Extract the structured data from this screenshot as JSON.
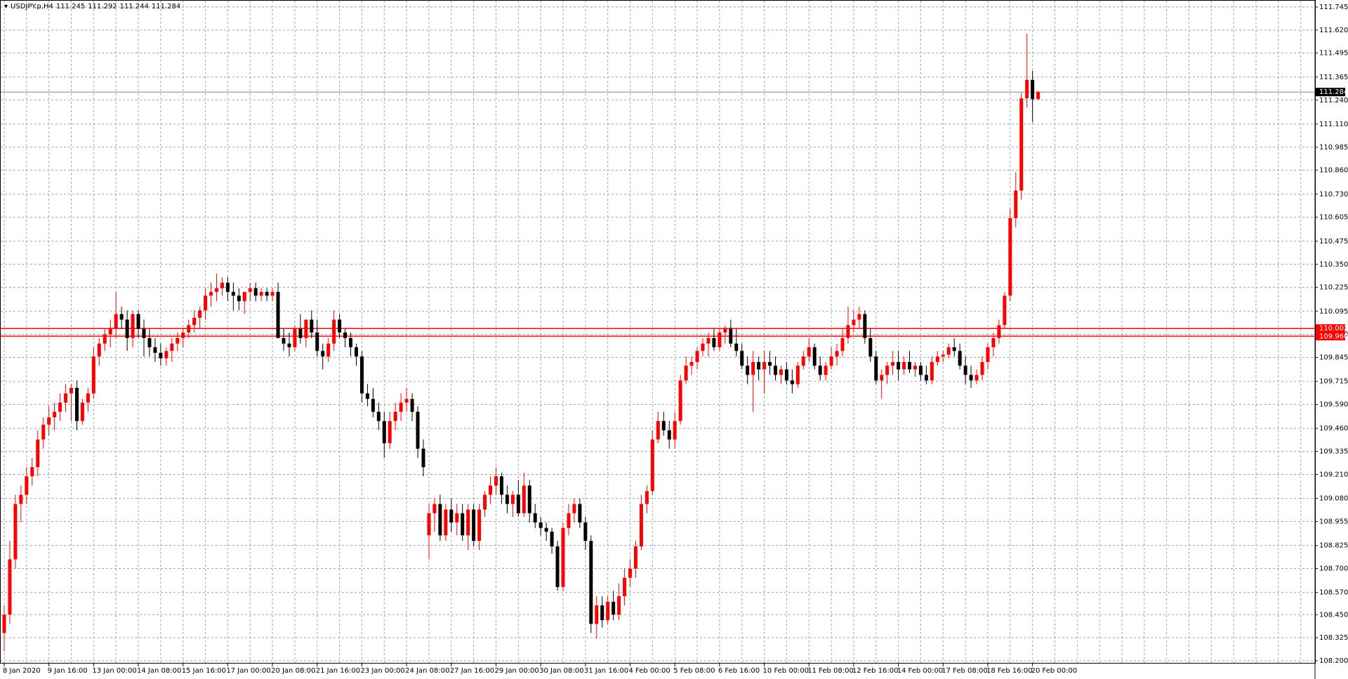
{
  "chart_data": {
    "type": "candlestick",
    "title": "USDJPY.p,H4",
    "up_color": "#ff0000",
    "down_color": "#000000",
    "grid": true,
    "ylim": [
      108.2,
      111.745
    ],
    "yticks": [
      111.745,
      {
        "value": 111.62,
        "label": "111.620"
      },
      111.495,
      111.365,
      {
        "value": 111.24,
        "label": "111.240"
      },
      {
        "value": 111.11,
        "label": "111.110"
      },
      110.985,
      {
        "value": 110.86,
        "label": "110.860"
      },
      {
        "value": 110.73,
        "label": "110.730"
      },
      110.605,
      110.475,
      {
        "value": 110.35,
        "label": "110.350"
      },
      110.225,
      110.095,
      {
        "value": 109.97,
        "label": "109.970"
      },
      109.845,
      109.715,
      {
        "value": 109.59,
        "label": "109.590"
      },
      {
        "value": 109.46,
        "label": "109.460"
      },
      109.335,
      {
        "value": 109.21,
        "label": "109.210"
      },
      {
        "value": 109.08,
        "label": "109.080"
      },
      108.955,
      108.825,
      {
        "value": 108.7,
        "label": "108.700"
      },
      {
        "value": 108.57,
        "label": "108.570"
      },
      {
        "value": 108.45,
        "label": "108.450"
      },
      108.325,
      {
        "value": 108.2,
        "label": "108.200"
      }
    ],
    "levels": [
      {
        "value": 110.002,
        "color": "#ff0000"
      },
      {
        "value": {
          "value": 109.96,
          "label": "109.960"
        },
        "color": "#ff0000"
      }
    ],
    "categories": [
      "8 Jan 2020",
      null,
      null,
      null,
      null,
      null,
      null,
      null,
      "9 Jan 16:00",
      null,
      null,
      null,
      null,
      null,
      null,
      null,
      "13 Jan 00:00",
      null,
      null,
      null,
      null,
      null,
      null,
      null,
      "14 Jan 08:00",
      null,
      null,
      null,
      null,
      null,
      null,
      null,
      "15 Jan 16:00",
      null,
      null,
      null,
      null,
      null,
      null,
      null,
      "17 Jan 00:00",
      null,
      null,
      null,
      null,
      null,
      null,
      null,
      "20 Jan 08:00",
      null,
      null,
      null,
      null,
      null,
      null,
      null,
      "21 Jan 16:00",
      null,
      null,
      null,
      null,
      null,
      null,
      null,
      "23 Jan 00:00",
      null,
      null,
      null,
      null,
      null,
      null,
      null,
      "24 Jan 08:00",
      null,
      null,
      null,
      null,
      null,
      null,
      null,
      "27 Jan 16:00",
      null,
      null,
      null,
      null,
      null,
      null,
      null,
      "29 Jan 00:00",
      null,
      null,
      null,
      null,
      null,
      null,
      null,
      "30 Jan 08:00",
      null,
      null,
      null,
      null,
      null,
      null,
      null,
      "31 Jan 16:00",
      null,
      null,
      null,
      null,
      null,
      null,
      null,
      "4 Feb 00:00",
      null,
      null,
      null,
      null,
      null,
      null,
      null,
      "5 Feb 08:00",
      null,
      null,
      null,
      null,
      null,
      null,
      null,
      "6 Feb 16:00",
      null,
      null,
      null,
      null,
      null,
      null,
      null,
      "10 Feb 00:00",
      null,
      null,
      null,
      null,
      null,
      null,
      null,
      "11 Feb 08:00",
      null,
      null,
      null,
      null,
      null,
      null,
      null,
      "12 Feb 16:00",
      null,
      null,
      null,
      null,
      null,
      null,
      null,
      "14 Feb 00:00",
      null,
      null,
      null,
      null,
      null,
      null,
      null,
      "17 Feb 08:00",
      null,
      null,
      null,
      null,
      null,
      null,
      null,
      "18 Feb 16:00",
      null,
      null,
      null,
      null,
      null,
      null,
      null,
      "20 Feb 00:00",
      null
    ],
    "ohlc": [
      [
        108.35,
        108.5,
        108.25,
        108.45
      ],
      [
        108.45,
        108.85,
        108.4,
        108.75
      ],
      [
        108.75,
        109.1,
        108.7,
        109.05
      ],
      [
        109.05,
        109.15,
        108.95,
        109.1
      ],
      [
        109.1,
        109.25,
        109.05,
        109.2
      ],
      [
        109.2,
        109.3,
        109.15,
        109.25
      ],
      [
        109.25,
        109.45,
        109.2,
        109.4
      ],
      [
        109.4,
        109.52,
        109.35,
        109.48
      ],
      [
        109.48,
        109.58,
        109.42,
        109.52
      ],
      [
        109.52,
        109.6,
        109.45,
        109.55
      ],
      [
        109.55,
        109.65,
        109.5,
        109.6
      ],
      [
        109.6,
        109.7,
        109.55,
        109.65
      ],
      [
        109.65,
        109.7,
        109.5,
        109.68
      ],
      [
        109.68,
        109.72,
        109.45,
        109.5
      ],
      [
        109.5,
        109.62,
        109.48,
        109.6
      ],
      [
        109.6,
        109.68,
        109.55,
        109.65
      ],
      [
        109.65,
        109.9,
        109.62,
        109.85
      ],
      [
        109.85,
        109.95,
        109.8,
        109.92
      ],
      [
        109.92,
        110.0,
        109.88,
        109.97
      ],
      [
        109.97,
        110.05,
        109.9,
        110.0
      ],
      [
        110.0,
        110.2,
        109.95,
        110.08
      ],
      [
        110.08,
        110.12,
        110.0,
        110.05
      ],
      [
        110.05,
        110.1,
        109.88,
        109.95
      ],
      [
        109.95,
        110.1,
        109.9,
        110.08
      ],
      [
        110.08,
        110.1,
        109.95,
        110.0
      ],
      [
        110.0,
        110.05,
        109.85,
        109.95
      ],
      [
        109.95,
        110.0,
        109.85,
        109.9
      ],
      [
        109.9,
        109.95,
        109.82,
        109.87
      ],
      [
        109.87,
        109.92,
        109.8,
        109.84
      ],
      [
        109.84,
        109.9,
        109.8,
        109.88
      ],
      [
        109.88,
        109.95,
        109.82,
        109.92
      ],
      [
        109.92,
        109.98,
        109.88,
        109.95
      ],
      [
        109.95,
        110.0,
        109.9,
        109.98
      ],
      [
        109.98,
        110.05,
        109.95,
        110.02
      ],
      [
        110.02,
        110.1,
        109.98,
        110.06
      ],
      [
        110.06,
        110.12,
        110.0,
        110.1
      ],
      [
        110.1,
        110.22,
        110.05,
        110.18
      ],
      [
        110.18,
        110.25,
        110.12,
        110.2
      ],
      [
        110.2,
        110.3,
        110.15,
        110.22
      ],
      [
        110.22,
        110.28,
        110.18,
        110.25
      ],
      [
        110.25,
        110.28,
        110.15,
        110.2
      ],
      [
        110.2,
        110.25,
        110.1,
        110.18
      ],
      [
        110.18,
        110.22,
        110.1,
        110.15
      ],
      [
        110.15,
        110.2,
        110.08,
        110.2
      ],
      [
        110.2,
        110.25,
        110.15,
        110.22
      ],
      [
        110.22,
        110.25,
        110.15,
        110.18
      ],
      [
        110.18,
        110.22,
        110.15,
        110.2
      ],
      [
        110.2,
        110.22,
        110.15,
        110.18
      ],
      [
        110.18,
        110.22,
        110.15,
        110.2
      ],
      [
        110.2,
        110.25,
        109.95,
        109.95
      ],
      [
        109.95,
        110.0,
        109.88,
        109.92
      ],
      [
        109.92,
        109.98,
        109.85,
        109.9
      ],
      [
        109.9,
        110.02,
        109.88,
        110.0
      ],
      [
        110.0,
        110.08,
        109.92,
        109.95
      ],
      [
        109.95,
        110.05,
        109.9,
        110.05
      ],
      [
        110.05,
        110.1,
        109.95,
        109.98
      ],
      [
        109.98,
        110.05,
        109.85,
        109.88
      ],
      [
        109.88,
        109.92,
        109.78,
        109.85
      ],
      [
        109.85,
        109.95,
        109.82,
        109.92
      ],
      [
        109.92,
        110.1,
        109.88,
        110.05
      ],
      [
        110.05,
        110.08,
        109.95,
        109.98
      ],
      [
        109.98,
        110.0,
        109.9,
        109.95
      ],
      [
        109.95,
        109.98,
        109.85,
        109.9
      ],
      [
        109.9,
        109.92,
        109.8,
        109.85
      ],
      [
        109.85,
        109.88,
        109.6,
        109.65
      ],
      [
        109.65,
        109.7,
        109.58,
        109.62
      ],
      [
        109.62,
        109.68,
        109.52,
        109.55
      ],
      [
        109.55,
        109.6,
        109.45,
        109.5
      ],
      [
        109.5,
        109.55,
        109.3,
        109.38
      ],
      [
        109.38,
        109.55,
        109.35,
        109.5
      ],
      [
        109.5,
        109.6,
        109.45,
        109.55
      ],
      [
        109.55,
        109.65,
        109.5,
        109.6
      ],
      [
        109.6,
        109.68,
        109.55,
        109.62
      ],
      [
        109.62,
        109.65,
        109.5,
        109.55
      ],
      [
        109.55,
        109.58,
        109.3,
        109.35
      ],
      [
        109.35,
        109.4,
        109.2,
        109.25
      ],
      [
        108.88,
        109.05,
        108.75,
        109.0
      ],
      [
        109.0,
        109.08,
        108.9,
        109.05
      ],
      [
        109.05,
        109.1,
        108.85,
        108.88
      ],
      [
        108.88,
        109.05,
        108.85,
        109.02
      ],
      [
        109.02,
        109.08,
        108.9,
        108.95
      ],
      [
        108.95,
        109.05,
        108.88,
        109.0
      ],
      [
        109.0,
        109.05,
        108.85,
        108.88
      ],
      [
        108.88,
        109.05,
        108.8,
        109.02
      ],
      [
        109.02,
        109.05,
        108.82,
        108.85
      ],
      [
        108.85,
        109.05,
        108.8,
        109.02
      ],
      [
        109.02,
        109.12,
        108.98,
        109.1
      ],
      [
        109.1,
        109.2,
        109.05,
        109.15
      ],
      [
        109.15,
        109.25,
        109.1,
        109.2
      ],
      [
        109.2,
        109.22,
        109.05,
        109.1
      ],
      [
        109.1,
        109.15,
        109.0,
        109.05
      ],
      [
        109.05,
        109.12,
        108.98,
        109.1
      ],
      [
        109.1,
        109.18,
        108.98,
        109.0
      ],
      [
        109.0,
        109.22,
        108.98,
        109.15
      ],
      [
        109.15,
        109.18,
        108.95,
        109.0
      ],
      [
        109.0,
        109.05,
        108.92,
        108.95
      ],
      [
        108.95,
        108.98,
        108.88,
        108.92
      ],
      [
        108.92,
        108.95,
        108.85,
        108.9
      ],
      [
        108.9,
        108.92,
        108.78,
        108.82
      ],
      [
        108.82,
        108.85,
        108.58,
        108.6
      ],
      [
        108.6,
        108.95,
        108.58,
        108.92
      ],
      [
        108.92,
        109.05,
        108.88,
        109.0
      ],
      [
        109.0,
        109.08,
        108.95,
        109.05
      ],
      [
        109.05,
        109.08,
        108.92,
        108.95
      ],
      [
        108.95,
        108.98,
        108.8,
        108.85
      ],
      [
        108.85,
        108.88,
        108.35,
        108.4
      ],
      [
        108.4,
        108.55,
        108.32,
        108.5
      ],
      [
        108.5,
        108.55,
        108.38,
        108.42
      ],
      [
        108.42,
        108.55,
        108.4,
        108.52
      ],
      [
        108.52,
        108.58,
        108.42,
        108.45
      ],
      [
        108.45,
        108.62,
        108.42,
        108.55
      ],
      [
        108.55,
        108.7,
        108.5,
        108.65
      ],
      [
        108.65,
        108.75,
        108.6,
        108.7
      ],
      [
        108.7,
        108.85,
        108.65,
        108.82
      ],
      [
        108.82,
        109.1,
        108.8,
        109.05
      ],
      [
        109.05,
        109.15,
        109.0,
        109.12
      ],
      [
        109.12,
        109.45,
        109.1,
        109.4
      ],
      [
        109.4,
        109.55,
        109.38,
        109.5
      ],
      [
        109.5,
        109.55,
        109.42,
        109.45
      ],
      [
        109.45,
        109.5,
        109.35,
        109.4
      ],
      [
        109.4,
        109.55,
        109.35,
        109.5
      ],
      [
        109.5,
        109.75,
        109.48,
        109.72
      ],
      [
        109.72,
        109.85,
        109.7,
        109.8
      ],
      [
        109.8,
        109.85,
        109.75,
        109.82
      ],
      [
        109.82,
        109.9,
        109.78,
        109.88
      ],
      [
        109.88,
        109.95,
        109.85,
        109.92
      ],
      [
        109.92,
        109.98,
        109.85,
        109.95
      ],
      [
        109.95,
        110.0,
        109.88,
        109.9
      ],
      [
        109.9,
        110.0,
        109.88,
        109.98
      ],
      [
        109.98,
        110.02,
        109.92,
        110.0
      ],
      [
        110.0,
        110.05,
        109.9,
        109.92
      ],
      [
        109.92,
        110.0,
        109.85,
        109.88
      ],
      [
        109.88,
        109.92,
        109.78,
        109.8
      ],
      [
        109.8,
        109.85,
        109.7,
        109.75
      ],
      [
        109.75,
        109.88,
        109.55,
        109.82
      ],
      [
        109.82,
        109.85,
        109.72,
        109.78
      ],
      [
        109.78,
        109.88,
        109.65,
        109.82
      ],
      [
        109.82,
        109.88,
        109.75,
        109.8
      ],
      [
        109.8,
        109.85,
        109.72,
        109.75
      ],
      [
        109.75,
        109.8,
        109.7,
        109.78
      ],
      [
        109.78,
        109.82,
        109.7,
        109.72
      ],
      [
        109.72,
        109.78,
        109.65,
        109.7
      ],
      [
        109.7,
        109.82,
        109.68,
        109.8
      ],
      [
        109.8,
        109.88,
        109.78,
        109.85
      ],
      [
        109.85,
        109.95,
        109.82,
        109.9
      ],
      [
        109.9,
        109.92,
        109.78,
        109.8
      ],
      [
        109.8,
        109.85,
        109.72,
        109.75
      ],
      [
        109.75,
        109.82,
        109.72,
        109.8
      ],
      [
        109.8,
        109.9,
        109.78,
        109.85
      ],
      [
        109.85,
        109.92,
        109.8,
        109.88
      ],
      [
        109.88,
        110.0,
        109.85,
        109.95
      ],
      [
        109.95,
        110.12,
        109.92,
        110.02
      ],
      [
        110.02,
        110.1,
        109.98,
        110.05
      ],
      [
        110.05,
        110.12,
        110.0,
        110.08
      ],
      [
        110.08,
        110.1,
        109.92,
        109.95
      ],
      [
        109.95,
        110.0,
        109.82,
        109.85
      ],
      [
        109.85,
        109.88,
        109.7,
        109.72
      ],
      [
        109.72,
        109.78,
        109.62,
        109.75
      ],
      [
        109.75,
        109.82,
        109.7,
        109.8
      ],
      [
        109.8,
        109.88,
        109.75,
        109.82
      ],
      [
        109.82,
        109.88,
        109.72,
        109.78
      ],
      [
        109.78,
        109.85,
        109.75,
        109.82
      ],
      [
        109.82,
        109.88,
        109.76,
        109.78
      ],
      [
        109.78,
        109.82,
        109.74,
        109.8
      ],
      [
        109.8,
        109.82,
        109.72,
        109.75
      ],
      [
        109.75,
        109.8,
        109.7,
        109.72
      ],
      [
        109.72,
        109.85,
        109.7,
        109.82
      ],
      [
        109.82,
        109.88,
        109.8,
        109.85
      ],
      [
        109.85,
        109.88,
        109.82,
        109.86
      ],
      [
        109.86,
        109.92,
        109.84,
        109.9
      ],
      [
        109.9,
        109.95,
        109.85,
        109.88
      ],
      [
        109.88,
        109.92,
        109.78,
        109.8
      ],
      [
        109.8,
        109.85,
        109.7,
        109.75
      ],
      [
        109.75,
        109.8,
        109.68,
        109.72
      ],
      [
        109.72,
        109.78,
        109.7,
        109.75
      ],
      [
        109.75,
        109.85,
        109.72,
        109.82
      ],
      [
        109.82,
        109.92,
        109.78,
        109.9
      ],
      [
        109.9,
        109.98,
        109.85,
        109.95
      ],
      [
        109.95,
        110.05,
        109.92,
        110.02
      ],
      [
        110.02,
        110.2,
        110.0,
        110.18
      ],
      [
        110.18,
        110.65,
        110.15,
        110.6
      ],
      [
        110.6,
        110.85,
        110.55,
        110.75
      ],
      [
        110.75,
        111.28,
        110.7,
        111.25
      ],
      [
        111.25,
        111.6,
        111.2,
        111.35
      ],
      [
        111.35,
        111.4,
        111.12,
        111.245
      ],
      [
        111.245,
        111.292,
        111.244,
        111.284
      ]
    ]
  }
}
